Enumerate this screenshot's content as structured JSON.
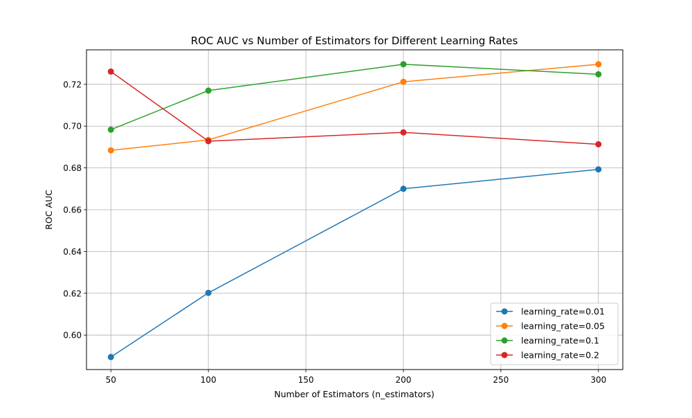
{
  "chart_data": {
    "type": "line",
    "title": "ROC AUC vs Number of Estimators for Different Learning Rates",
    "xlabel": "Number of Estimators (n_estimators)",
    "ylabel": "ROC AUC",
    "x": [
      50,
      100,
      200,
      300
    ],
    "xlim": [
      37.5,
      312.5
    ],
    "ylim": [
      0.5835,
      0.7365
    ],
    "xticks": [
      50,
      100,
      150,
      200,
      250,
      300
    ],
    "yticks": [
      0.6,
      0.62,
      0.64,
      0.66,
      0.68,
      0.7,
      0.72
    ],
    "ytick_labels": [
      "0.60",
      "0.62",
      "0.64",
      "0.66",
      "0.68",
      "0.70",
      "0.72"
    ],
    "grid": true,
    "legend_position": "lower-right",
    "marker": "circle",
    "series": [
      {
        "name": "learning_rate=0.01",
        "color": "#1f77b4",
        "values": [
          0.5895,
          0.6202,
          0.67,
          0.6793
        ]
      },
      {
        "name": "learning_rate=0.05",
        "color": "#ff7f0e",
        "values": [
          0.6884,
          0.6934,
          0.7212,
          0.7296
        ]
      },
      {
        "name": "learning_rate=0.1",
        "color": "#2ca02c",
        "values": [
          0.6983,
          0.717,
          0.7296,
          0.7248
        ]
      },
      {
        "name": "learning_rate=0.2",
        "color": "#d62728",
        "values": [
          0.7261,
          0.6928,
          0.697,
          0.6913
        ]
      }
    ]
  }
}
